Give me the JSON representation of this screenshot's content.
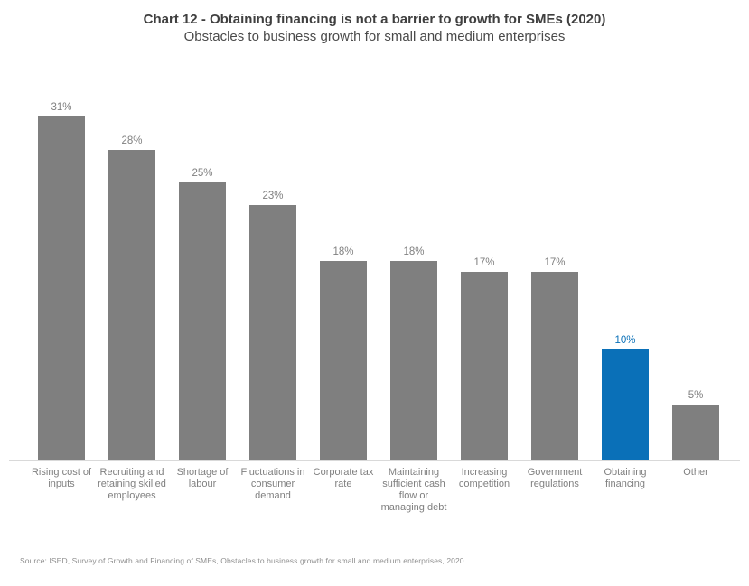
{
  "header": {
    "title": "Chart 12 - Obtaining financing is not a barrier to growth for SMEs (2020)",
    "subtitle": "Obstacles to business growth for small and medium enterprises"
  },
  "chart_data": {
    "type": "bar",
    "title": "Chart 12 - Obtaining financing is not a barrier to growth for SMEs (2020)",
    "subtitle": "Obstacles to business growth for small and medium enterprises",
    "categories": [
      "Rising cost of inputs",
      "Recruiting and retaining skilled employees",
      "Shortage of labour",
      "Fluctuations in consumer demand",
      "Corporate tax rate",
      "Maintaining sufficient cash flow or managing debt",
      "Increasing competition",
      "Government regulations",
      "Obtaining financing",
      "Other"
    ],
    "values": [
      31,
      28,
      25,
      23,
      18,
      18,
      17,
      17,
      10,
      5
    ],
    "data_labels": [
      "31%",
      "28%",
      "25%",
      "23%",
      "18%",
      "18%",
      "17%",
      "17%",
      "10%",
      "5%"
    ],
    "highlight_index": 8,
    "bar_color": "#7f7f7f",
    "highlight_color": "#0a70b8",
    "value_label_color": "#7f7f7f",
    "highlight_label_color": "#0a70b8",
    "axis_line_color": "#d9d9d9",
    "xlabel": "",
    "ylabel": "",
    "ylim": [
      0,
      33
    ],
    "grid": false,
    "legend": false,
    "y_axis_visible": false
  },
  "footer": {
    "source": "Source: ISED, Survey of Growth and Financing of SMEs, Obstacles to business growth for small and medium enterprises, 2020"
  }
}
